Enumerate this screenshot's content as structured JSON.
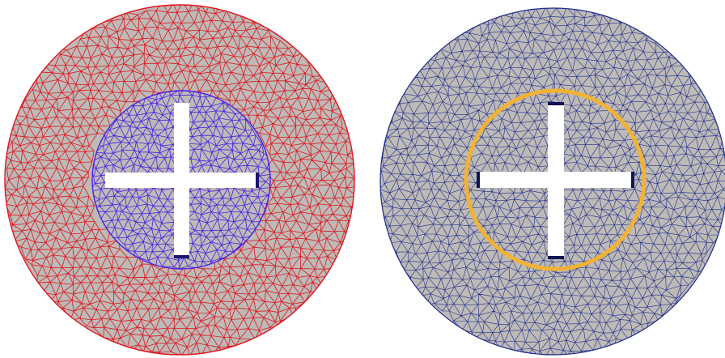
{
  "figure": {
    "panels": [
      {
        "id": "left",
        "outer_mesh_color": "#e0141c",
        "inner_mesh_color": "#4a1ee6",
        "fill_color": "#bdbab7",
        "slot_edge_color": "#1a1470"
      },
      {
        "id": "right",
        "mesh_color": "#1c2a8c",
        "fill_color": "#bdbab7",
        "interface_ring_color": "#f2b233",
        "slot_edge_color": "#0e1452"
      }
    ],
    "background_color": "#ffffff",
    "cutout_color": "#ffffff"
  }
}
